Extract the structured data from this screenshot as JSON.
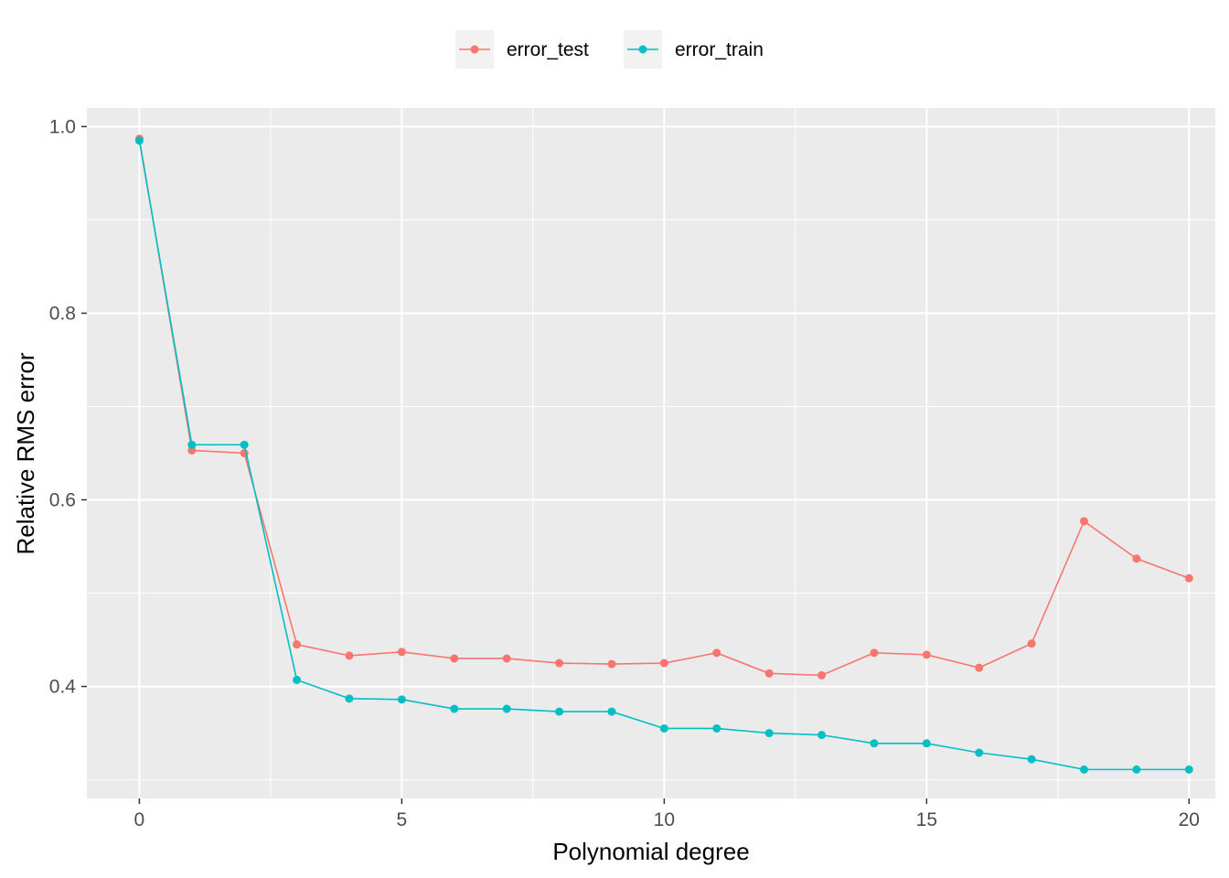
{
  "chart_data": {
    "type": "line",
    "title": "",
    "xlabel": "Polynomial degree",
    "ylabel": "Relative RMS error",
    "xlim": [
      -1,
      20.5
    ],
    "ylim": [
      0.28,
      1.02
    ],
    "x_ticks": [
      0,
      5,
      10,
      15,
      20
    ],
    "x_tick_labels": [
      "0",
      "5",
      "10",
      "15",
      "20"
    ],
    "y_ticks": [
      0.4,
      0.6,
      0.8,
      1.0
    ],
    "y_tick_labels": [
      "0.4",
      "0.6",
      "0.8",
      "1.0"
    ],
    "grid": true,
    "legend_position": "top",
    "x": [
      0,
      1,
      2,
      3,
      4,
      5,
      6,
      7,
      8,
      9,
      10,
      11,
      12,
      13,
      14,
      15,
      16,
      17,
      18,
      19,
      20
    ],
    "series": [
      {
        "name": "error_test",
        "color": "#F8766D",
        "values": [
          0.987,
          0.653,
          0.65,
          0.445,
          0.433,
          0.437,
          0.43,
          0.43,
          0.425,
          0.424,
          0.425,
          0.436,
          0.414,
          0.412,
          0.436,
          0.434,
          0.42,
          0.446,
          0.577,
          0.537,
          0.516
        ]
      },
      {
        "name": "error_train",
        "color": "#00BFC4",
        "values": [
          0.985,
          0.659,
          0.659,
          0.407,
          0.387,
          0.386,
          0.376,
          0.376,
          0.373,
          0.373,
          0.355,
          0.355,
          0.35,
          0.348,
          0.339,
          0.339,
          0.329,
          0.322,
          0.311,
          0.311,
          0.311
        ]
      }
    ]
  }
}
